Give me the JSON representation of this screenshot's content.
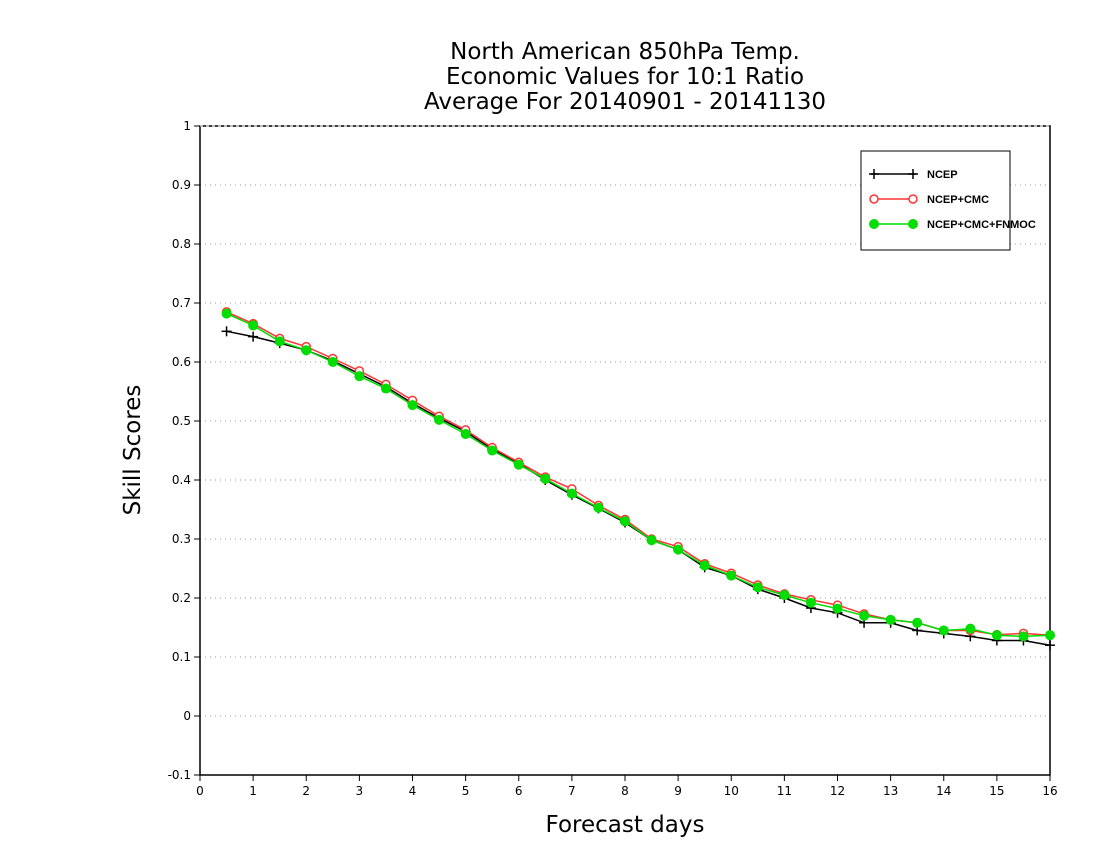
{
  "chart_data": {
    "type": "line",
    "title": [
      "North American 850hPa Temp.",
      "Economic Values for 10:1 Ratio",
      "Average For 20140901 - 20141130"
    ],
    "xlabel": "Forecast days",
    "ylabel": "Skill Scores",
    "xlim": [
      0,
      16
    ],
    "ylim": [
      -0.1,
      1
    ],
    "xticks": [
      0,
      1,
      2,
      3,
      4,
      5,
      6,
      7,
      8,
      9,
      10,
      11,
      12,
      13,
      14,
      15,
      16
    ],
    "yticks": [
      -0.1,
      0,
      0.1,
      0.2,
      0.3,
      0.4,
      0.5,
      0.6,
      0.7,
      0.8,
      0.9,
      1
    ],
    "ytick_labels": [
      "-0.1",
      "0",
      "0.1",
      "0.2",
      "0.3",
      "0.4",
      "0.5",
      "0.6",
      "0.7",
      "0.8",
      "0.9",
      "1"
    ],
    "grid": "horizontal dotted",
    "legend_position": "top-right",
    "x": [
      0.5,
      1,
      1.5,
      2,
      2.5,
      3,
      3.5,
      4,
      4.5,
      5,
      5.5,
      6,
      6.5,
      7,
      7.5,
      8,
      8.5,
      9,
      9.5,
      10,
      10.5,
      11,
      11.5,
      12,
      12.5,
      13,
      13.5,
      14,
      14.5,
      15,
      15.5,
      16
    ],
    "series": [
      {
        "name": "NCEP",
        "color": "#000000",
        "marker": "plus",
        "values": [
          0.652,
          0.643,
          0.632,
          0.62,
          0.602,
          0.58,
          0.558,
          0.53,
          0.505,
          0.482,
          0.452,
          0.428,
          0.4,
          0.375,
          0.352,
          0.328,
          0.298,
          0.282,
          0.252,
          0.238,
          0.215,
          0.2,
          0.183,
          0.175,
          0.158,
          0.158,
          0.145,
          0.14,
          0.135,
          0.128,
          0.128,
          0.12
        ]
      },
      {
        "name": "NCEP+CMC",
        "color": "#ff3333",
        "marker": "open-circle",
        "values": [
          0.685,
          0.665,
          0.64,
          0.626,
          0.606,
          0.585,
          0.562,
          0.535,
          0.508,
          0.485,
          0.455,
          0.43,
          0.405,
          0.385,
          0.357,
          0.333,
          0.3,
          0.287,
          0.258,
          0.242,
          0.222,
          0.207,
          0.197,
          0.188,
          0.173,
          0.163,
          0.158,
          0.145,
          0.145,
          0.138,
          0.14,
          0.137
        ]
      },
      {
        "name": "NCEP+CMC+FNMOC",
        "color": "#00dd00",
        "marker": "filled-circle",
        "values": [
          0.682,
          0.662,
          0.635,
          0.62,
          0.6,
          0.576,
          0.555,
          0.527,
          0.502,
          0.478,
          0.45,
          0.426,
          0.402,
          0.377,
          0.353,
          0.33,
          0.298,
          0.282,
          0.255,
          0.238,
          0.218,
          0.205,
          0.192,
          0.182,
          0.17,
          0.163,
          0.158,
          0.145,
          0.148,
          0.137,
          0.135,
          0.137
        ]
      }
    ]
  }
}
